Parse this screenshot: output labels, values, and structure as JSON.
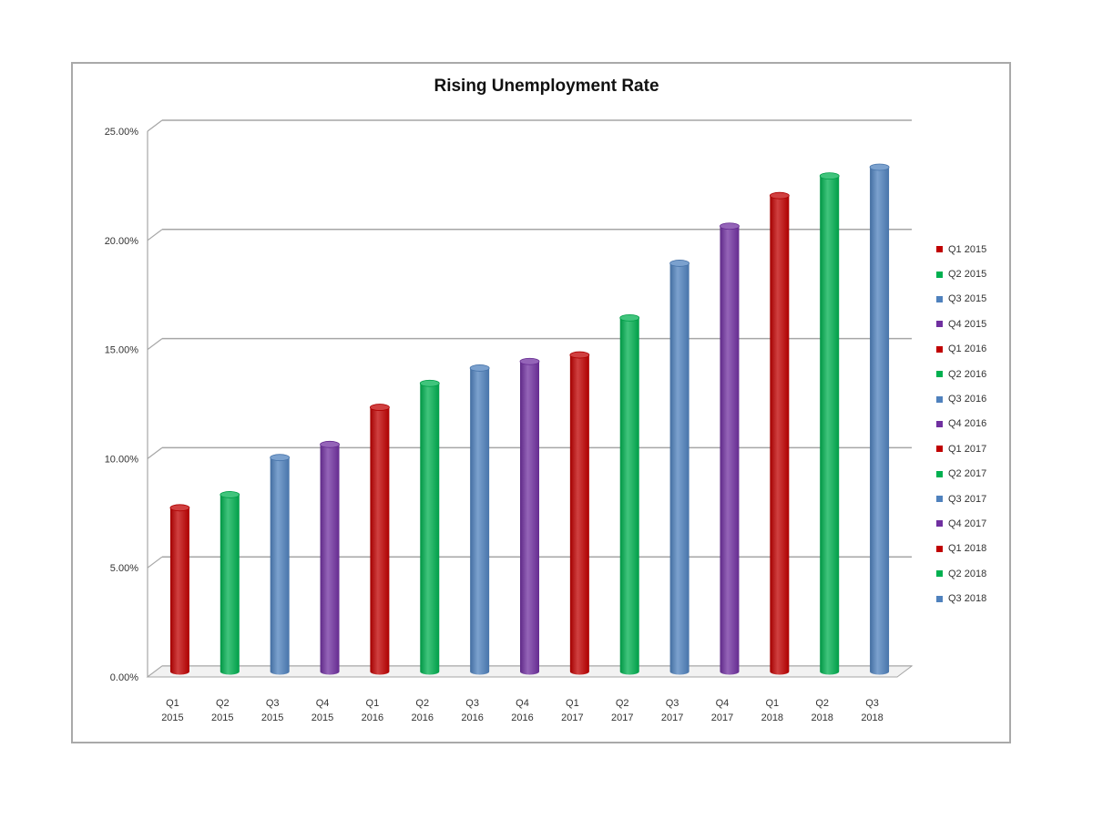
{
  "chart_data": {
    "type": "bar",
    "title": "Rising Unemployment Rate",
    "xlabel": "",
    "ylabel": "",
    "ylim": [
      0,
      25
    ],
    "yticks": [
      "0.00%",
      "5.00%",
      "10.00%",
      "15.00%",
      "20.00%",
      "25.00%"
    ],
    "grid": true,
    "legend_position": "right",
    "categories": [
      "Q1 2015",
      "Q2 2015",
      "Q3 2015",
      "Q4 2015",
      "Q1 2016",
      "Q2 2016",
      "Q3 2016",
      "Q4 2016",
      "Q1 2017",
      "Q2 2017",
      "Q3 2017",
      "Q4 2017",
      "Q1 2018",
      "Q2 2018",
      "Q3 2018"
    ],
    "category_lines": [
      [
        "Q1",
        "2015"
      ],
      [
        "Q2",
        "2015"
      ],
      [
        "Q3",
        "2015"
      ],
      [
        "Q4",
        "2015"
      ],
      [
        "Q1",
        "2016"
      ],
      [
        "Q2",
        "2016"
      ],
      [
        "Q3",
        "2016"
      ],
      [
        "Q4",
        "2016"
      ],
      [
        "Q1",
        "2017"
      ],
      [
        "Q2",
        "2017"
      ],
      [
        "Q3",
        "2017"
      ],
      [
        "Q4",
        "2017"
      ],
      [
        "Q1",
        "2018"
      ],
      [
        "Q2",
        "2018"
      ],
      [
        "Q3",
        "2018"
      ]
    ],
    "values": [
      7.5,
      8.1,
      9.8,
      10.4,
      12.1,
      13.2,
      13.9,
      14.2,
      14.5,
      16.2,
      18.7,
      20.4,
      21.8,
      22.7,
      23.1
    ],
    "colors": [
      "#c00000",
      "#00b050",
      "#4f81bd",
      "#7030a0",
      "#c00000",
      "#00b050",
      "#4f81bd",
      "#7030a0",
      "#c00000",
      "#00b050",
      "#4f81bd",
      "#7030a0",
      "#c00000",
      "#00b050",
      "#4f81bd"
    ]
  }
}
